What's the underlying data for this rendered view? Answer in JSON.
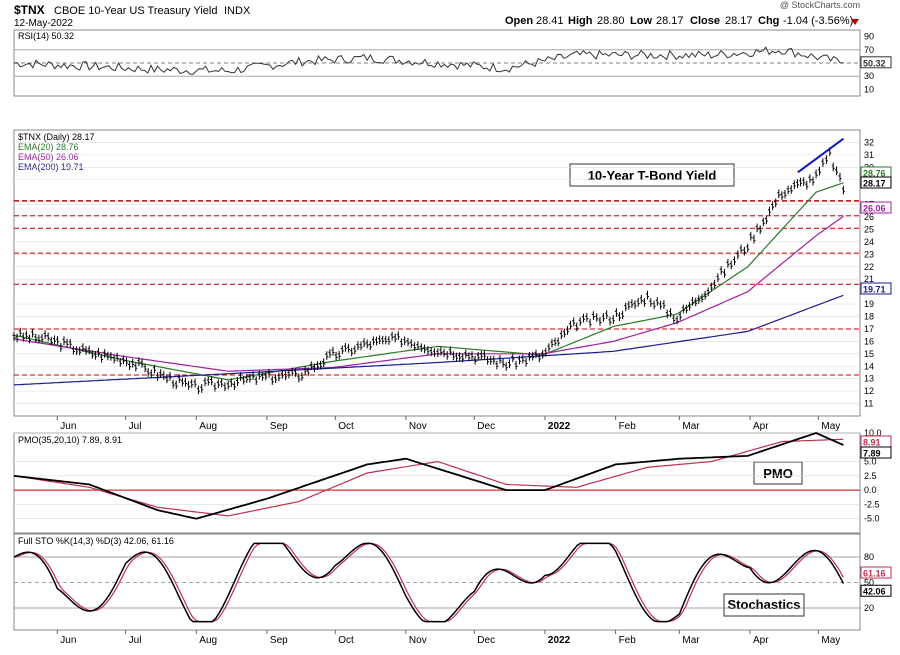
{
  "header": {
    "symbol": "$TNX",
    "name": "CBOE 10-Year US Treasury Yield",
    "exchange": "INDX",
    "date": "12-May-2022",
    "open_label": "Open",
    "open": "28.41",
    "high_label": "High",
    "high": "28.80",
    "low_label": "Low",
    "low": "28.17",
    "close_label": "Close",
    "close": "28.17",
    "chg_label": "Chg",
    "chg": "-1.04 (-3.56%)",
    "watermark": "@ StockCharts.com"
  },
  "colors": {
    "price": "#000000",
    "ema20": "#2a7a2a",
    "ema50": "#a020a0",
    "ema200": "#1a1a8c",
    "support": "#cc0000",
    "trend": "#1010c0",
    "pmo_signal": "#c03050",
    "sto_d": "#c03050",
    "panel_bg": "#ffffff",
    "grid": "#dcdcdc"
  },
  "annotations": {
    "price_label": "10-Year T-Bond Yield",
    "pmo_label": "PMO",
    "sto_label": "Stochastics"
  },
  "chart_data": [
    {
      "panel": "rsi",
      "type": "line",
      "legend": "RSI(14) 50.32",
      "ylim": [
        0,
        100
      ],
      "yticks": [
        "90",
        "70",
        "50",
        "30",
        "10"
      ],
      "levels": [
        70,
        50,
        30
      ],
      "last_value": "50.32",
      "x": [
        "2021-05-13",
        "2021-06-15",
        "2021-07-15",
        "2021-08-15",
        "2021-09-15",
        "2021-10-15",
        "2021-11-15",
        "2021-12-15",
        "2022-01-15",
        "2022-02-15",
        "2022-03-15",
        "2022-04-15",
        "2022-05-12"
      ],
      "values": [
        50,
        45,
        40,
        38,
        52,
        58,
        50,
        42,
        62,
        62,
        62,
        70,
        50.32
      ]
    },
    {
      "panel": "price",
      "type": "line",
      "legend": [
        "$TNX (Daily) 28.17",
        "EMA(20) 28.76",
        "EMA(50) 26.06",
        "EMA(200) 19.71"
      ],
      "ylim": [
        10,
        33
      ],
      "yticks": [
        "32",
        "31",
        "30",
        "29",
        "27",
        "26",
        "25",
        "24",
        "23",
        "22",
        "21",
        "19",
        "18",
        "17",
        "16",
        "15",
        "14",
        "13",
        "12",
        "11"
      ],
      "value_tags": [
        "28.76",
        "28.17",
        "26.06",
        "19.71"
      ],
      "xticks": [
        "Jun",
        "Jul",
        "Aug",
        "Sep",
        "Oct",
        "Nov",
        "Dec",
        "2022",
        "Feb",
        "Mar",
        "Apr",
        "May"
      ],
      "support_lines": [
        27.3,
        26.1,
        25.1,
        23.1,
        20.6,
        17.0,
        13.3
      ],
      "series": [
        {
          "name": "$TNX (Daily) 28.17",
          "x": [
            "2021-05-13",
            "2021-05-28",
            "2021-06-15",
            "2021-06-30",
            "2021-07-15",
            "2021-07-30",
            "2021-08-15",
            "2021-08-30",
            "2021-09-15",
            "2021-09-30",
            "2021-10-15",
            "2021-10-30",
            "2021-11-15",
            "2021-11-30",
            "2021-12-15",
            "2021-12-31",
            "2022-01-15",
            "2022-01-31",
            "2022-02-15",
            "2022-02-28",
            "2022-03-15",
            "2022-03-31",
            "2022-04-15",
            "2022-04-30",
            "2022-05-06",
            "2022-05-12"
          ],
          "values": [
            16.5,
            16.2,
            15.1,
            14.6,
            13.4,
            12.3,
            12.7,
            13.1,
            13.3,
            14.9,
            15.8,
            16.2,
            15.3,
            14.9,
            14.2,
            14.9,
            17.5,
            18.0,
            19.6,
            17.9,
            20.5,
            23.8,
            28.0,
            29.2,
            31.0,
            28.17
          ]
        },
        {
          "name": "EMA(20) 28.76",
          "x": [
            "2021-05-13",
            "2021-06-30",
            "2021-08-15",
            "2021-09-30",
            "2021-11-15",
            "2021-12-31",
            "2022-01-31",
            "2022-02-28",
            "2022-03-31",
            "2022-04-30",
            "2022-05-12"
          ],
          "values": [
            16.5,
            14.5,
            12.9,
            14.4,
            15.6,
            14.9,
            17.2,
            18.2,
            22.0,
            28.0,
            28.76
          ]
        },
        {
          "name": "EMA(50) 26.06",
          "x": [
            "2021-05-13",
            "2021-06-30",
            "2021-08-15",
            "2021-09-30",
            "2021-11-15",
            "2021-12-31",
            "2022-01-31",
            "2022-02-28",
            "2022-03-31",
            "2022-04-30",
            "2022-05-12"
          ],
          "values": [
            16.2,
            14.8,
            13.6,
            13.9,
            15.0,
            15.0,
            16.0,
            17.5,
            20.0,
            24.5,
            26.06
          ]
        },
        {
          "name": "EMA(200) 19.71",
          "x": [
            "2021-05-13",
            "2021-08-15",
            "2021-11-15",
            "2022-01-31",
            "2022-03-31",
            "2022-05-12"
          ],
          "values": [
            12.5,
            13.4,
            14.3,
            15.2,
            16.8,
            19.71
          ]
        }
      ],
      "trendline": {
        "x": [
          "2022-04-22",
          "2022-05-12"
        ],
        "values": [
          29.6,
          32.3
        ]
      }
    },
    {
      "panel": "pmo",
      "type": "line",
      "legend": "PMO(35,20,10) 7.89, 8.91",
      "ylim": [
        -7.5,
        10
      ],
      "yticks": [
        "10.0",
        "5.0",
        "2.5",
        "0.0",
        "-2.5",
        "-5.0"
      ],
      "value_tags": [
        "8.91",
        "7.89"
      ],
      "series": [
        {
          "name": "PMO(35,20,10) 7.89",
          "x": [
            "2021-05-13",
            "2021-06-15",
            "2021-07-15",
            "2021-08-01",
            "2021-09-01",
            "2021-10-15",
            "2021-11-01",
            "2021-12-15",
            "2022-01-01",
            "2022-02-01",
            "2022-03-01",
            "2022-03-31",
            "2022-04-30",
            "2022-05-12"
          ],
          "values": [
            2.5,
            1.0,
            -3.5,
            -5.0,
            -1.5,
            4.5,
            5.5,
            0.0,
            0.0,
            4.5,
            5.5,
            6.0,
            10.0,
            7.89
          ]
        },
        {
          "name": "8.91",
          "x": [
            "2021-05-13",
            "2021-06-15",
            "2021-07-15",
            "2021-08-15",
            "2021-09-15",
            "2021-10-15",
            "2021-11-15",
            "2021-12-15",
            "2022-01-15",
            "2022-02-15",
            "2022-03-15",
            "2022-04-15",
            "2022-05-12"
          ],
          "values": [
            2.5,
            0.5,
            -3.0,
            -4.5,
            -2.0,
            3.0,
            5.0,
            1.0,
            0.5,
            4.0,
            5.0,
            8.5,
            8.91
          ]
        }
      ]
    },
    {
      "panel": "stochastics",
      "type": "line",
      "legend": "Full STO %K(14,3) %D(3) 42.06, 61.16",
      "ylim": [
        0,
        100
      ],
      "yticks": [
        "80",
        "50",
        "20"
      ],
      "value_tags": [
        "61.16",
        "42.06"
      ],
      "levels": [
        80,
        50,
        20
      ],
      "series": [
        {
          "name": "Full STO %K(14,3) 42.06",
          "x": [
            "2021-05-13",
            "2021-06-01",
            "2021-07-01",
            "2021-08-01",
            "2021-09-01",
            "2021-10-01",
            "2021-11-01",
            "2021-12-01",
            "2022-01-01",
            "2022-02-01",
            "2022-03-01",
            "2022-04-01",
            "2022-05-12"
          ],
          "values": [
            80,
            25,
            70,
            20,
            80,
            90,
            40,
            15,
            90,
            70,
            15,
            90,
            42.06
          ]
        },
        {
          "name": "%D(3) 61.16",
          "x": [
            "2021-05-13",
            "2021-06-01",
            "2021-07-01",
            "2021-08-01",
            "2021-09-01",
            "2021-10-01",
            "2021-11-01",
            "2021-12-01",
            "2022-01-01",
            "2022-02-01",
            "2022-03-01",
            "2022-04-01",
            "2022-05-12"
          ],
          "values": [
            78,
            28,
            66,
            23,
            76,
            87,
            43,
            18,
            86,
            72,
            18,
            87,
            61.16
          ]
        }
      ],
      "xticks": [
        "Jun",
        "Jul",
        "Aug",
        "Sep",
        "Oct",
        "Nov",
        "Dec",
        "2022",
        "Feb",
        "Mar",
        "Apr",
        "May"
      ]
    }
  ]
}
